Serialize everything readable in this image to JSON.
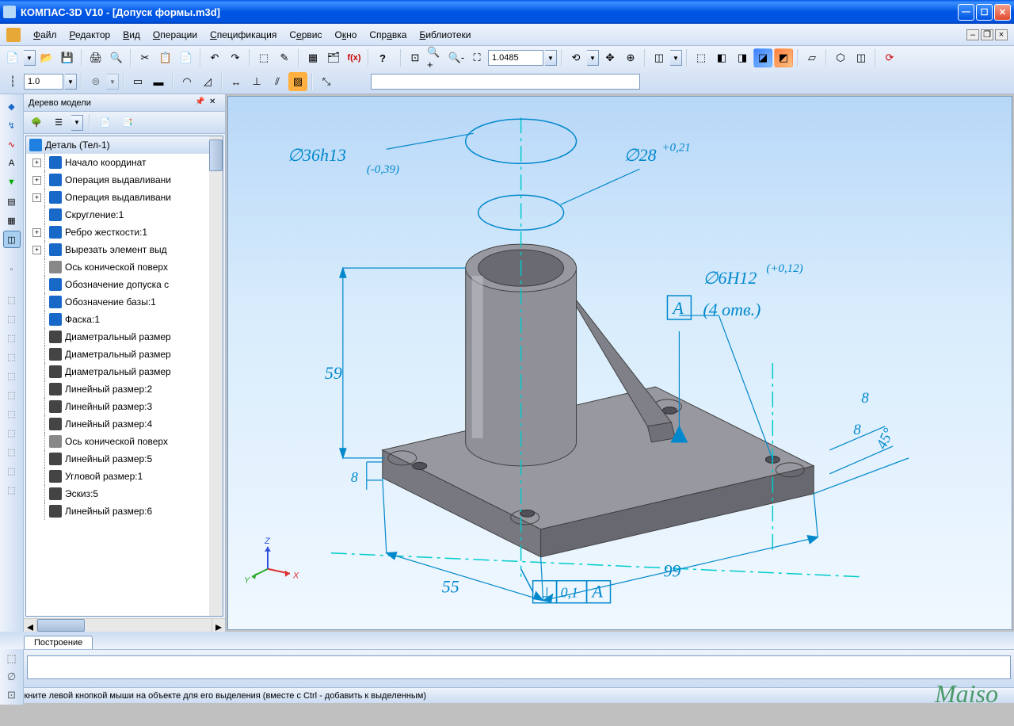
{
  "window": {
    "title": "КОМПАС-3D V10 - [Допуск формы.m3d]"
  },
  "menu": {
    "file": "Файл",
    "editor": "Редактор",
    "view": "Вид",
    "operations": "Операции",
    "specification": "Спецификация",
    "service": "Сервис",
    "window": "Окно",
    "help": "Справка",
    "libraries": "Библиотеки"
  },
  "toolbar": {
    "line_weight": "1.0",
    "zoom_value": "1.0485"
  },
  "tree": {
    "title": "Дерево модели",
    "root": "Деталь (Тел-1)",
    "items": [
      {
        "label": "Начало координат",
        "icon_color": "#1868c8",
        "expand": "+"
      },
      {
        "label": "Операция выдавливани",
        "icon_color": "#1868c8",
        "expand": "+"
      },
      {
        "label": "Операция выдавливани",
        "icon_color": "#1868c8",
        "expand": "+"
      },
      {
        "label": "Скругление:1",
        "icon_color": "#1868c8",
        "expand": ""
      },
      {
        "label": "Ребро жесткости:1",
        "icon_color": "#1868c8",
        "expand": "+"
      },
      {
        "label": "Вырезать элемент выд",
        "icon_color": "#1868c8",
        "expand": "+"
      },
      {
        "label": "Ось конической поверх",
        "icon_color": "#888888",
        "expand": ""
      },
      {
        "label": "Обозначение допуска с",
        "icon_color": "#1868c8",
        "expand": ""
      },
      {
        "label": "Обозначение базы:1",
        "icon_color": "#1868c8",
        "expand": ""
      },
      {
        "label": "Фаска:1",
        "icon_color": "#1868c8",
        "expand": ""
      },
      {
        "label": "Диаметральный размер",
        "icon_color": "#444444",
        "expand": ""
      },
      {
        "label": "Диаметральный размер",
        "icon_color": "#444444",
        "expand": ""
      },
      {
        "label": "Диаметральный размер",
        "icon_color": "#444444",
        "expand": ""
      },
      {
        "label": "Линейный размер:2",
        "icon_color": "#444444",
        "expand": ""
      },
      {
        "label": "Линейный размер:3",
        "icon_color": "#444444",
        "expand": ""
      },
      {
        "label": "Линейный размер:4",
        "icon_color": "#444444",
        "expand": ""
      },
      {
        "label": "Ось конической поверх",
        "icon_color": "#888888",
        "expand": ""
      },
      {
        "label": "Линейный размер:5",
        "icon_color": "#444444",
        "expand": ""
      },
      {
        "label": "Угловой размер:1",
        "icon_color": "#444444",
        "expand": ""
      },
      {
        "label": "Эскиз:5",
        "icon_color": "#444444",
        "expand": ""
      },
      {
        "label": "Линейный размер:6",
        "icon_color": "#444444",
        "expand": ""
      }
    ]
  },
  "viewport": {
    "dimensions": {
      "d36": "∅36h13",
      "d36_tol": "(-0,39)",
      "d28": "∅28",
      "d28_tol": "+0,21",
      "d6": "∅6H12",
      "d6_tol": "(+0,12)",
      "holes": "(4 отв.)",
      "datum": "А",
      "h59": "59",
      "w55": "55",
      "w99": "99",
      "t8a": "8",
      "t8b": "8",
      "t8c": "8",
      "ang45": "45°",
      "tol_val": "0,1",
      "tol_ref": "А"
    },
    "axis": {
      "x": "X",
      "y": "Y",
      "z": "Z"
    },
    "colors": {
      "dim_line": "#0088cc",
      "aux_line": "#00cccc",
      "part_light": "#b8b8b8",
      "part_mid": "#909090",
      "part_dark": "#686868",
      "part_top": "#9898a0"
    }
  },
  "bottom_tab": "Построение",
  "status": {
    "hint": "Щелкните левой кнопкой мыши на объекте для его выделения (вместе с Ctrl - добавить к выделенным)"
  },
  "watermark": "Maiso"
}
